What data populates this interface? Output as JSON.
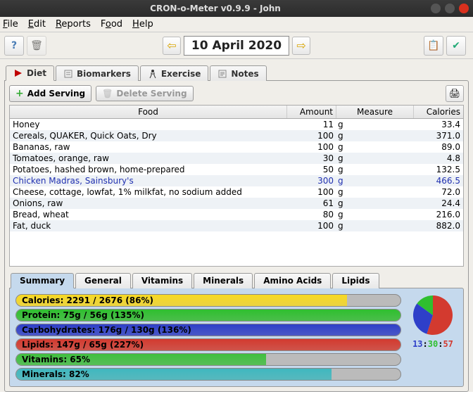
{
  "window": {
    "title": "CRON-o-Meter v0.9.9 - John"
  },
  "menu": {
    "file": "File",
    "edit": "Edit",
    "reports": "Reports",
    "food": "Food",
    "help": "Help"
  },
  "date": "10 April 2020",
  "main_tabs": [
    {
      "label": "Diet",
      "icon_color": "#c00000"
    },
    {
      "label": "Biomarkers",
      "icon_color": "#888"
    },
    {
      "label": "Exercise",
      "icon_color": "#333"
    },
    {
      "label": "Notes",
      "icon_color": "#888"
    }
  ],
  "actions": {
    "add": "Add Serving",
    "delete": "Delete Serving"
  },
  "table": {
    "headers": {
      "food": "Food",
      "amount": "Amount",
      "measure": "Measure",
      "calories": "Calories"
    },
    "rows": [
      {
        "food": "Honey",
        "amount": "11",
        "measure": "g",
        "calories": "33.4",
        "color": "#000"
      },
      {
        "food": "Cereals, QUAKER, Quick Oats, Dry",
        "amount": "100",
        "measure": "g",
        "calories": "371.0",
        "color": "#000"
      },
      {
        "food": "Bananas, raw",
        "amount": "100",
        "measure": "g",
        "calories": "89.0",
        "color": "#000"
      },
      {
        "food": "Tomatoes, orange, raw",
        "amount": "30",
        "measure": "g",
        "calories": "4.8",
        "color": "#000"
      },
      {
        "food": "Potatoes, hashed brown, home-prepared",
        "amount": "50",
        "measure": "g",
        "calories": "132.5",
        "color": "#000"
      },
      {
        "food": "Chicken Madras, Sainsbury's",
        "amount": "300",
        "measure": "g",
        "calories": "466.5",
        "color": "#2030b0"
      },
      {
        "food": "Cheese, cottage, lowfat, 1% milkfat, no sodium added",
        "amount": "100",
        "measure": "g",
        "calories": "72.0",
        "color": "#000"
      },
      {
        "food": "Onions, raw",
        "amount": "61",
        "measure": "g",
        "calories": "24.4",
        "color": "#000"
      },
      {
        "food": "Bread, wheat",
        "amount": "80",
        "measure": "g",
        "calories": "216.0",
        "color": "#000"
      },
      {
        "food": "Fat, duck",
        "amount": "100",
        "measure": "g",
        "calories": "882.0",
        "color": "#000"
      }
    ]
  },
  "sub_tabs": [
    "Summary",
    "General",
    "Vitamins",
    "Minerals",
    "Amino Acids",
    "Lipids"
  ],
  "summary": {
    "bars": [
      {
        "label": "Calories: 2291 / 2676 (86%)",
        "pct": 86,
        "color": "#f7d923"
      },
      {
        "label": "Protein: 75g / 56g (135%)",
        "pct": 100,
        "color": "#2fbf2f"
      },
      {
        "label": "Carbohydrates: 176g / 130g (136%)",
        "pct": 100,
        "color": "#2e3fc9"
      },
      {
        "label": "Lipids: 147g / 65g (227%)",
        "pct": 100,
        "color": "#d33a2f"
      },
      {
        "label": "Vitamins: 65%",
        "pct": 65,
        "color": "#3fbf3f"
      },
      {
        "label": "Minerals: 82%",
        "pct": 82,
        "color": "#3fb8bf"
      }
    ],
    "pie": {
      "slices": [
        {
          "color": "#d33a2f",
          "pct": 55
        },
        {
          "color": "#2e3fc9",
          "pct": 30
        },
        {
          "color": "#2fbf2f",
          "pct": 15
        }
      ]
    },
    "clock": {
      "h": "13",
      "m": "30",
      "s": "57",
      "hc": "#2e3fc9",
      "mc": "#2fbf2f",
      "sc": "#d33a2f"
    }
  }
}
